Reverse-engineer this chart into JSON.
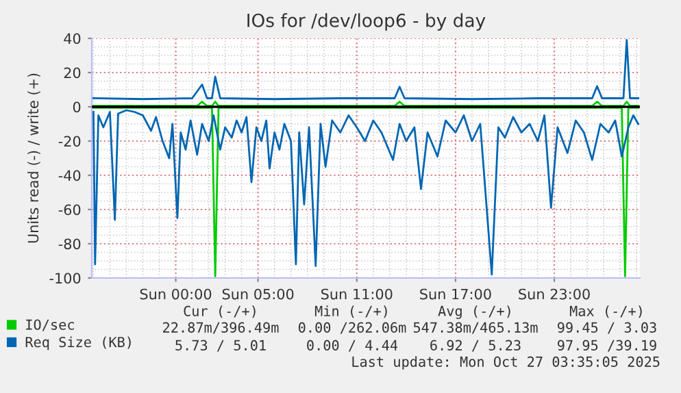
{
  "chart_data": {
    "type": "line",
    "title": "IOs for /dev/loop6 - by day",
    "ylabel": "Units read (-) / write (+)",
    "xlim": [
      "2025-10-25T18:54",
      "2025-10-27T04:12"
    ],
    "xticks": [
      {
        "value": "2025-10-26T00:00",
        "label": "Sun 00:00"
      },
      {
        "value": "2025-10-26T05:00",
        "label": "Sun 05:00"
      },
      {
        "value": "2025-10-26T11:00",
        "label": "Sun 11:00"
      },
      {
        "value": "2025-10-26T17:00",
        "label": "Sun 17:00"
      },
      {
        "value": "2025-10-26T23:00",
        "label": "Sun 23:00"
      }
    ],
    "ylim": [
      -100,
      40
    ],
    "yticks": [
      40,
      20,
      0,
      -20,
      -40,
      -60,
      -80,
      -100
    ],
    "grid": true,
    "legend": "bottom left",
    "marker": "none",
    "line_style": "solid",
    "ref_lines": [
      {
        "axis": "y",
        "value": 0,
        "color": "#000000"
      }
    ],
    "series": [
      {
        "name": "IO/sec",
        "color": "#00cc00",
        "x": [
          "2025-10-25T19:00",
          "2025-10-26T01:18",
          "2025-10-26T01:36",
          "2025-10-26T01:54",
          "2025-10-26T02:12",
          "2025-10-26T02:24",
          "2025-10-26T02:36",
          "2025-10-26T13:18",
          "2025-10-26T13:36",
          "2025-10-26T13:54",
          "2025-10-27T01:18",
          "2025-10-27T01:36",
          "2025-10-27T01:54",
          "2025-10-27T03:12",
          "2025-10-27T03:24",
          "2025-10-27T03:36",
          "2025-10-27T04:06"
        ],
        "values": [
          0.5,
          0.5,
          3,
          0.5,
          0.5,
          3,
          0.5,
          0.5,
          3,
          0.5,
          0.5,
          3,
          0.5,
          0.5,
          3,
          0.5,
          0.5
        ]
      },
      {
        "color": "#00cc00",
        "x": [
          "2025-10-25T19:00",
          "2025-10-26T02:12",
          "2025-10-26T02:24",
          "2025-10-26T02:36",
          "2025-10-27T03:06",
          "2025-10-27T03:18",
          "2025-10-27T03:30",
          "2025-10-27T04:06"
        ],
        "values": [
          -0.5,
          -0.5,
          -99,
          -0.5,
          -0.5,
          -99,
          -0.5,
          -0.5
        ]
      },
      {
        "name": "Req Size (KB)",
        "color": "#0066b3",
        "x": [
          "2025-10-25T19:00",
          "2025-10-25T22:00",
          "2025-10-26T01:00",
          "2025-10-26T01:36",
          "2025-10-26T01:54",
          "2025-10-26T02:12",
          "2025-10-26T02:24",
          "2025-10-26T02:42",
          "2025-10-26T06:00",
          "2025-10-26T10:00",
          "2025-10-26T13:18",
          "2025-10-26T13:36",
          "2025-10-26T13:54",
          "2025-10-26T18:00",
          "2025-10-26T22:00",
          "2025-10-27T01:18",
          "2025-10-27T01:36",
          "2025-10-27T01:54",
          "2025-10-27T03:12",
          "2025-10-27T03:24",
          "2025-10-27T03:36",
          "2025-10-27T04:06"
        ],
        "values": [
          5,
          4.5,
          5,
          13,
          5,
          5,
          17.6,
          5,
          4.5,
          5,
          5,
          11.7,
          5,
          4.5,
          5,
          5,
          12,
          5,
          5,
          39,
          5,
          5
        ]
      },
      {
        "color": "#0066b3",
        "x": [
          "2025-10-25T19:00",
          "2025-10-25T19:06",
          "2025-10-25T19:18",
          "2025-10-25T19:36",
          "2025-10-25T20:00",
          "2025-10-25T20:18",
          "2025-10-25T20:30",
          "2025-10-25T21:00",
          "2025-10-25T21:30",
          "2025-10-25T22:00",
          "2025-10-25T22:30",
          "2025-10-25T22:48",
          "2025-10-25T23:12",
          "2025-10-25T23:36",
          "2025-10-25T23:48",
          "2025-10-26T00:06",
          "2025-10-26T00:18",
          "2025-10-26T00:36",
          "2025-10-26T00:54",
          "2025-10-26T01:18",
          "2025-10-26T01:36",
          "2025-10-26T02:00",
          "2025-10-26T02:18",
          "2025-10-26T02:42",
          "2025-10-26T03:00",
          "2025-10-26T03:24",
          "2025-10-26T03:42",
          "2025-10-26T04:00",
          "2025-10-26T04:18",
          "2025-10-26T04:36",
          "2025-10-26T04:54",
          "2025-10-26T05:12",
          "2025-10-26T05:30",
          "2025-10-26T05:42",
          "2025-10-26T06:00",
          "2025-10-26T06:18",
          "2025-10-26T06:36",
          "2025-10-26T07:00",
          "2025-10-26T07:18",
          "2025-10-26T07:30",
          "2025-10-26T07:48",
          "2025-10-26T08:06",
          "2025-10-26T08:30",
          "2025-10-26T08:48",
          "2025-10-26T09:06",
          "2025-10-26T09:30",
          "2025-10-26T10:00",
          "2025-10-26T10:30",
          "2025-10-26T11:00",
          "2025-10-26T11:30",
          "2025-10-26T12:00",
          "2025-10-26T12:30",
          "2025-10-26T13:12",
          "2025-10-26T13:36",
          "2025-10-26T14:00",
          "2025-10-26T14:30",
          "2025-10-26T14:54",
          "2025-10-26T15:18",
          "2025-10-26T15:54",
          "2025-10-26T16:24",
          "2025-10-26T17:00",
          "2025-10-26T17:30",
          "2025-10-26T18:00",
          "2025-10-26T18:30",
          "2025-10-26T19:12",
          "2025-10-26T19:36",
          "2025-10-26T20:00",
          "2025-10-26T20:30",
          "2025-10-26T21:00",
          "2025-10-26T21:30",
          "2025-10-26T22:00",
          "2025-10-26T22:24",
          "2025-10-26T22:48",
          "2025-10-26T23:12",
          "2025-10-26T23:48",
          "2025-10-27T00:18",
          "2025-10-27T00:48",
          "2025-10-27T01:18",
          "2025-10-27T01:48",
          "2025-10-27T02:18",
          "2025-10-27T02:42",
          "2025-10-27T03:06",
          "2025-10-27T03:30",
          "2025-10-27T03:48",
          "2025-10-27T04:06"
        ],
        "values": [
          -3,
          -92,
          -5,
          -12,
          -3,
          -66,
          -4,
          -2,
          -3,
          -5,
          -14,
          -6,
          -20,
          -30,
          -10,
          -65,
          -15,
          -25,
          -8,
          -28,
          -10,
          -20,
          -5,
          -25,
          -12,
          -18,
          -8,
          -15,
          -6,
          -44,
          -12,
          -20,
          -8,
          -36,
          -15,
          -25,
          -10,
          -20,
          -92,
          -15,
          -57,
          -12,
          -93,
          -10,
          -35,
          -8,
          -15,
          -5,
          -12,
          -20,
          -8,
          -15,
          -31,
          -10,
          -20,
          -12,
          -48,
          -15,
          -29,
          -8,
          -15,
          -5,
          -20,
          -10,
          -98,
          -12,
          -18,
          -6,
          -15,
          -10,
          -20,
          -5,
          -59,
          -12,
          -27,
          -8,
          -15,
          -31,
          -10,
          -15,
          -8,
          -29,
          -12,
          -5,
          -10
        ]
      }
    ],
    "annotations": [
      "Cur (-/+)",
      "Min (-/+)",
      "Avg (-/+)",
      "Max (-/+)",
      "22.87m/396.49m",
      "0.00 /262.06m",
      "547.38m/465.13m",
      "99.45 / 3.03",
      "5.73 / 5.01",
      "0.00 / 4.44",
      "6.92 / 5.23",
      "97.95 /39.19",
      "Last update: Mon Oct 27 03:35:05 2025"
    ]
  }
}
